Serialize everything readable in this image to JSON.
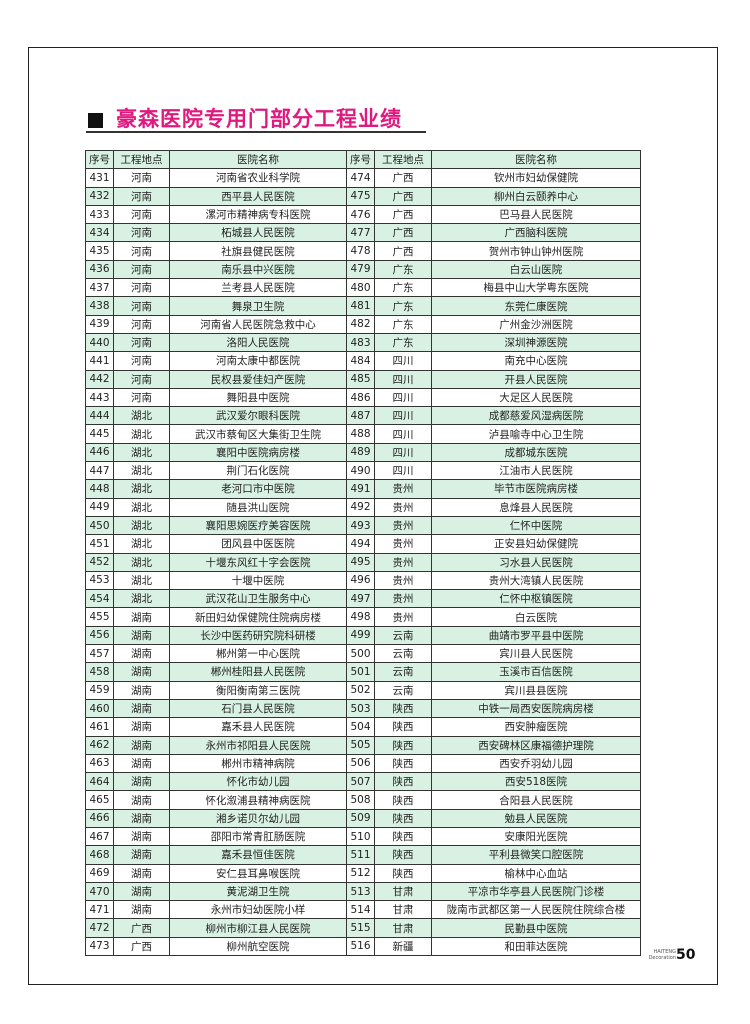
{
  "title": "豪森医院专用门部分工程业绩",
  "colors": {
    "title": "#e0197f",
    "row_highlight": "#d8f1e2"
  },
  "table": {
    "headers": [
      "序号",
      "工程地点",
      "医院名称",
      "序号",
      "工程地点",
      "医院名称"
    ],
    "rows": [
      [
        "431",
        "河南",
        "河南省农业科学院",
        "474",
        "广西",
        "钦州市妇幼保健院"
      ],
      [
        "432",
        "河南",
        "西平县人民医院",
        "475",
        "广西",
        "柳州白云颐养中心"
      ],
      [
        "433",
        "河南",
        "漯河市精神病专科医院",
        "476",
        "广西",
        "巴马县人民医院"
      ],
      [
        "434",
        "河南",
        "柘城县人民医院",
        "477",
        "广西",
        "广西脑科医院"
      ],
      [
        "435",
        "河南",
        "社旗县健民医院",
        "478",
        "广西",
        "贺州市钟山钟州医院"
      ],
      [
        "436",
        "河南",
        "南乐县中兴医院",
        "479",
        "广东",
        "白云山医院"
      ],
      [
        "437",
        "河南",
        "兰考县人民医院",
        "480",
        "广东",
        "梅县中山大学粤东医院"
      ],
      [
        "438",
        "河南",
        "舞泉卫生院",
        "481",
        "广东",
        "东莞仁康医院"
      ],
      [
        "439",
        "河南",
        "河南省人民医院急救中心",
        "482",
        "广东",
        "广州金沙洲医院"
      ],
      [
        "440",
        "河南",
        "洛阳人民医院",
        "483",
        "广东",
        "深圳神源医院"
      ],
      [
        "441",
        "河南",
        "河南太康中都医院",
        "484",
        "四川",
        "南充中心医院"
      ],
      [
        "442",
        "河南",
        "民权县爱佳妇产医院",
        "485",
        "四川",
        "开县人民医院"
      ],
      [
        "443",
        "河南",
        "舞阳县中医院",
        "486",
        "四川",
        "大足区人民医院"
      ],
      [
        "444",
        "湖北",
        "武汉爱尔眼科医院",
        "487",
        "四川",
        "成都慈爱风湿病医院"
      ],
      [
        "445",
        "湖北",
        "武汉市蔡甸区大集街卫生院",
        "488",
        "四川",
        "泸县喻寺中心卫生院"
      ],
      [
        "446",
        "湖北",
        "襄阳中医院病房楼",
        "489",
        "四川",
        "成都城东医院"
      ],
      [
        "447",
        "湖北",
        "荆门石化医院",
        "490",
        "四川",
        "江油市人民医院"
      ],
      [
        "448",
        "湖北",
        "老河口市中医院",
        "491",
        "贵州",
        "毕节市医院病房楼"
      ],
      [
        "449",
        "湖北",
        "随县洪山医院",
        "492",
        "贵州",
        "息烽县人民医院"
      ],
      [
        "450",
        "湖北",
        "襄阳思婉医疗美容医院",
        "493",
        "贵州",
        "仁怀中医院"
      ],
      [
        "451",
        "湖北",
        "团风县中医医院",
        "494",
        "贵州",
        "正安县妇幼保健院"
      ],
      [
        "452",
        "湖北",
        "十堰东风红十字会医院",
        "495",
        "贵州",
        "习水县人民医院"
      ],
      [
        "453",
        "湖北",
        "十堰中医院",
        "496",
        "贵州",
        "贵州大湾镇人民医院"
      ],
      [
        "454",
        "湖北",
        "武汉花山卫生服务中心",
        "497",
        "贵州",
        "仁怀中枢镇医院"
      ],
      [
        "455",
        "湖南",
        "新田妇幼保健院住院病房楼",
        "498",
        "贵州",
        "白云医院"
      ],
      [
        "456",
        "湖南",
        "长沙中医药研究院科研楼",
        "499",
        "云南",
        "曲靖市罗平县中医院"
      ],
      [
        "457",
        "湖南",
        "郴州第一中心医院",
        "500",
        "云南",
        "宾川县人民医院"
      ],
      [
        "458",
        "湖南",
        "郴州桂阳县人民医院",
        "501",
        "云南",
        "玉溪市百信医院"
      ],
      [
        "459",
        "湖南",
        "衡阳衡南第三医院",
        "502",
        "云南",
        "宾川县县医院"
      ],
      [
        "460",
        "湖南",
        "石门县人民医院",
        "503",
        "陕西",
        "中铁一局西安医院病房楼"
      ],
      [
        "461",
        "湖南",
        "嘉禾县人民医院",
        "504",
        "陕西",
        "西安肿瘤医院"
      ],
      [
        "462",
        "湖南",
        "永州市祁阳县人民医院",
        "505",
        "陕西",
        "西安碑林区康福德护理院"
      ],
      [
        "463",
        "湖南",
        "郴州市精神病院",
        "506",
        "陕西",
        "西安乔羽幼儿园"
      ],
      [
        "464",
        "湖南",
        "怀化市幼儿园",
        "507",
        "陕西",
        "西安518医院"
      ],
      [
        "465",
        "湖南",
        "怀化溆浦县精神病医院",
        "508",
        "陕西",
        "合阳县人民医院"
      ],
      [
        "466",
        "湖南",
        "湘乡诺贝尔幼儿园",
        "509",
        "陕西",
        "勉县人民医院"
      ],
      [
        "467",
        "湖南",
        "邵阳市常青肛肠医院",
        "510",
        "陕西",
        "安康阳光医院"
      ],
      [
        "468",
        "湖南",
        "嘉禾县恒佳医院",
        "511",
        "陕西",
        "平利县微笑口腔医院"
      ],
      [
        "469",
        "湖南",
        "安仁县耳鼻喉医院",
        "512",
        "陕西",
        "榆林中心血站"
      ],
      [
        "470",
        "湖南",
        "黄泥湖卫生院",
        "513",
        "甘肃",
        "平凉市华亭县人民医院门诊楼"
      ],
      [
        "471",
        "湖南",
        "永州市妇幼医院小样",
        "514",
        "甘肃",
        "陇南市武都区第一人民医院住院综合楼"
      ],
      [
        "472",
        "广西",
        "柳州市柳江县人民医院",
        "515",
        "甘肃",
        "民勤县中医院"
      ],
      [
        "473",
        "广西",
        "柳州航空医院",
        "516",
        "新疆",
        "和田菲达医院"
      ]
    ]
  },
  "footer": {
    "brand_line1": "HAITENG",
    "brand_line2": "Decoration",
    "page_number": "50"
  }
}
